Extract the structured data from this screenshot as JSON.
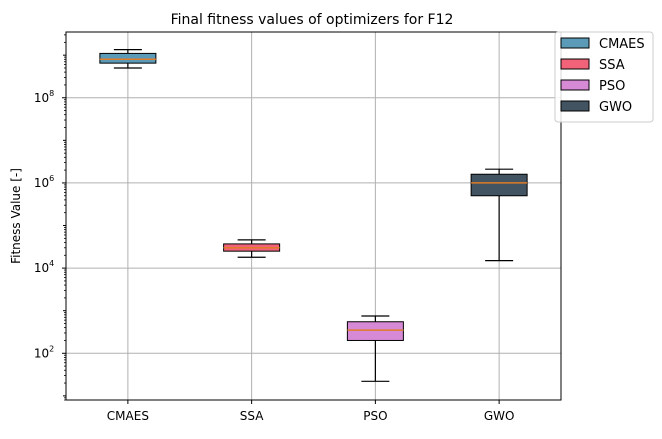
{
  "chart_data": {
    "type": "box",
    "title": "Final fitness values of optimizers for F12",
    "xlabel": "",
    "ylabel": "Fitness Value [-]",
    "yscale": "log",
    "ylim": [
      8,
      3500000000.0
    ],
    "yticks": [
      {
        "value": 100,
        "base": "10",
        "exp": "2"
      },
      {
        "value": 10000,
        "base": "10",
        "exp": "4"
      },
      {
        "value": 1000000,
        "base": "10",
        "exp": "6"
      },
      {
        "value": 100000000,
        "base": "10",
        "exp": "8"
      }
    ],
    "grid": true,
    "legend_position": "outside-top-right",
    "categories": [
      "CMAES",
      "SSA",
      "PSO",
      "GWO"
    ],
    "series": [
      {
        "name": "CMAES",
        "color": "#5b9bb8",
        "whisker_low": 500000000.0,
        "q1": 650000000.0,
        "median": 800000000.0,
        "q3": 1100000000.0,
        "whisker_high": 1350000000.0
      },
      {
        "name": "SSA",
        "color": "#f2637a",
        "whisker_low": 18000,
        "q1": 25000,
        "median": 30000,
        "q3": 37000,
        "whisker_high": 46000
      },
      {
        "name": "PSO",
        "color": "#d68ad6",
        "whisker_low": 22,
        "q1": 200,
        "median": 350,
        "q3": 550,
        "whisker_high": 750
      },
      {
        "name": "GWO",
        "color": "#425461",
        "whisker_low": 15000,
        "q1": 500000,
        "median": 1000000,
        "q3": 1600000,
        "whisker_high": 2100000
      }
    ],
    "median_color": "#e07b28"
  }
}
